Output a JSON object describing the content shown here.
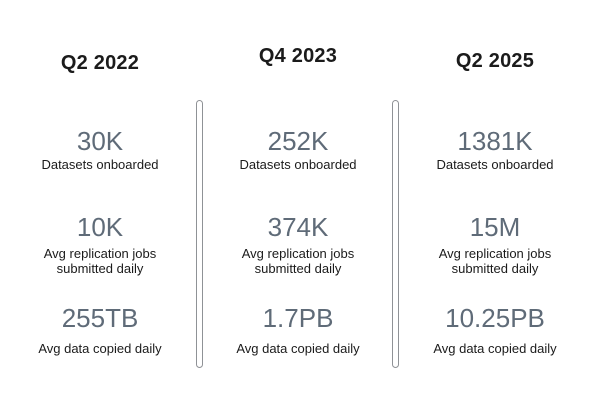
{
  "colors": {
    "bg": "#ffffff",
    "header_text": "#1b1b1b",
    "stat_value": "#5f6b78",
    "stat_label": "#1b1b1b",
    "divider_border": "#8f9296"
  },
  "columns": [
    {
      "title": "Q2 2022",
      "stats": [
        {
          "value": "30K",
          "label": "Datasets onboarded"
        },
        {
          "value": "10K",
          "label": "Avg replication jobs submitted daily"
        },
        {
          "value": "255TB",
          "label": "Avg data copied daily"
        }
      ]
    },
    {
      "title": "Q4 2023",
      "stats": [
        {
          "value": "252K",
          "label": "Datasets onboarded"
        },
        {
          "value": "374K",
          "label": "Avg replication jobs submitted daily"
        },
        {
          "value": "1.7PB",
          "label": "Avg data copied daily"
        }
      ]
    },
    {
      "title": "Q2 2025",
      "stats": [
        {
          "value": "1381K",
          "label": "Datasets onboarded"
        },
        {
          "value": "15M",
          "label": "Avg replication jobs submitted daily"
        },
        {
          "value": "10.25PB",
          "label": "Avg data copied daily"
        }
      ]
    }
  ],
  "chart_data": {
    "type": "table",
    "title": "",
    "columns": [
      "Q2 2022",
      "Q4 2023",
      "Q2 2025"
    ],
    "rows": [
      {
        "metric": "Datasets onboarded",
        "values": [
          "30K",
          "252K",
          "1381K"
        ]
      },
      {
        "metric": "Avg replication jobs submitted daily",
        "values": [
          "10K",
          "374K",
          "15M"
        ]
      },
      {
        "metric": "Avg data copied daily",
        "values": [
          "255TB",
          "1.7PB",
          "10.25PB"
        ]
      }
    ],
    "layout": {
      "orientation": "three-column comparison",
      "dividers": "vertical capsule lines between columns",
      "grid": false,
      "legend": "none"
    }
  }
}
